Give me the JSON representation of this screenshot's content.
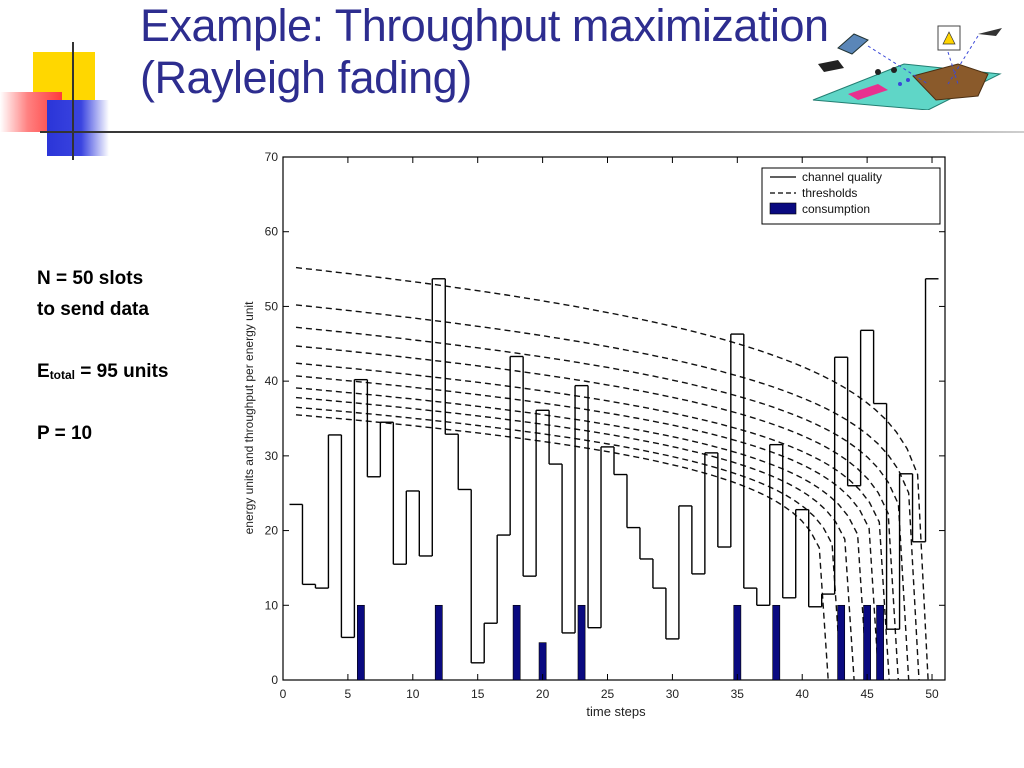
{
  "title": {
    "line1": "Example:  Throughput maximization",
    "line2": "(Rayleigh fading)"
  },
  "notes": {
    "n_line1": "N = 50 slots",
    "n_line2": "to send data",
    "e_main": "E",
    "e_sub": "total",
    "e_rest": " = 95 units",
    "p_line": "P = 10"
  },
  "colors": {
    "title": "#2d2d8f",
    "consumption": "#0a0a80",
    "accent_yellow": "#ffd700",
    "accent_red": "#ff3b3b",
    "accent_blue": "#2b35d8"
  },
  "logo": {
    "icon": "satellite-network-illustration-icon"
  },
  "chart_data": {
    "type": "line",
    "xlabel": "time steps",
    "ylabel": "energy units and throughput per energy unit",
    "xlim": [
      0,
      51
    ],
    "ylim": [
      0,
      70
    ],
    "xticks": [
      0,
      5,
      10,
      15,
      20,
      25,
      30,
      35,
      40,
      45,
      50
    ],
    "yticks": [
      0,
      10,
      20,
      30,
      40,
      50,
      60,
      70
    ],
    "legend_position": "top-right",
    "legend": [
      "channel quality",
      "thresholds",
      "consumption"
    ],
    "series": [
      {
        "name": "channel quality",
        "style": "step",
        "x": [
          1,
          2,
          3,
          4,
          5,
          6,
          7,
          8,
          9,
          10,
          11,
          12,
          13,
          14,
          15,
          16,
          17,
          18,
          19,
          20,
          21,
          22,
          23,
          24,
          25,
          26,
          27,
          28,
          29,
          30,
          31,
          32,
          33,
          34,
          35,
          36,
          37,
          38,
          39,
          40,
          41,
          42,
          43,
          44,
          45,
          46,
          47,
          48,
          49,
          50
        ],
        "values": [
          23.5,
          12.8,
          12.3,
          32.8,
          5.7,
          40.2,
          27.2,
          34.5,
          15.5,
          25.3,
          16.6,
          53.7,
          32.9,
          25.5,
          2.3,
          7.6,
          19.4,
          43.3,
          13.9,
          36.1,
          28.9,
          6.3,
          39.4,
          7.0,
          31.2,
          27.5,
          20.4,
          16.2,
          12.3,
          5.5,
          23.3,
          14.2,
          30.4,
          17.8,
          46.3,
          12.3,
          10.0,
          31.5,
          11.0,
          22.8,
          9.8,
          11.5,
          43.2,
          26.0,
          46.8,
          37.0,
          6.8,
          27.6,
          18.5,
          53.7
        ]
      },
      {
        "name": "thresholds",
        "style": "dashed",
        "x_end": [
          49.7,
          49.0,
          48.2,
          47.4,
          46.7,
          45.9,
          45.0,
          44.0,
          43.0,
          42.0
        ],
        "y_start": [
          55.2,
          50.2,
          47.2,
          44.7,
          42.4,
          40.7,
          39.1,
          37.8,
          36.5,
          35.5
        ]
      },
      {
        "name": "consumption",
        "style": "bar",
        "x": [
          6,
          12,
          18,
          20,
          23,
          35,
          38,
          43,
          45,
          46
        ],
        "values": [
          10,
          10,
          10,
          5,
          10,
          10,
          10,
          10,
          10,
          10
        ]
      }
    ]
  }
}
